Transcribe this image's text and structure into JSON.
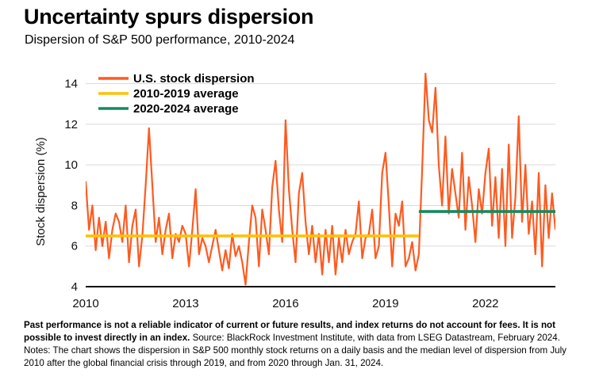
{
  "header": {
    "title": "Uncertainty spurs dispersion",
    "subtitle": "Dispersion of S&P 500 performance, 2010-2024"
  },
  "footer": {
    "disclaimer": "Past performance is not a reliable indicator of current or future results, and index returns do not account for fees. It is not possible to invest directly in an index.",
    "source": " Source: BlackRock Investment Institute, with data from LSEG Datastream, February 2024. Notes: The chart shows the dispersion in S&P 500 monthly stock returns on a daily basis and the median level of dispersion from July 2010 after the global financial crisis through 2019, and from 2020 through Jan. 31, 2024."
  },
  "chart_data": {
    "type": "line",
    "title": "Uncertainty spurs dispersion",
    "subtitle": "Dispersion of S&P 500 performance, 2010-2024",
    "xlabel": "",
    "ylabel": "Stock dispersion (%)",
    "xlim": [
      2010,
      2024.1
    ],
    "ylim": [
      4,
      15
    ],
    "x_ticks": [
      "2010",
      "2013",
      "2016",
      "2019",
      "2022"
    ],
    "y_ticks": [
      "4",
      "6",
      "8",
      "10",
      "12",
      "14"
    ],
    "grid": "horizontal",
    "legend_position": "top-left",
    "series": [
      {
        "name": "U.S. stock dispersion",
        "color": "#ff5a1f",
        "x": [
          2010.0,
          2010.1,
          2010.2,
          2010.3,
          2010.4,
          2010.5,
          2010.6,
          2010.7,
          2010.8,
          2010.9,
          2011.0,
          2011.1,
          2011.2,
          2011.3,
          2011.4,
          2011.5,
          2011.6,
          2011.7,
          2011.8,
          2011.9,
          2012.0,
          2012.1,
          2012.2,
          2012.3,
          2012.4,
          2012.5,
          2012.6,
          2012.7,
          2012.8,
          2012.9,
          2013.0,
          2013.1,
          2013.2,
          2013.3,
          2013.4,
          2013.5,
          2013.6,
          2013.7,
          2013.8,
          2013.9,
          2014.0,
          2014.1,
          2014.2,
          2014.3,
          2014.4,
          2014.5,
          2014.6,
          2014.7,
          2014.8,
          2014.9,
          2015.0,
          2015.1,
          2015.2,
          2015.3,
          2015.4,
          2015.5,
          2015.6,
          2015.7,
          2015.8,
          2015.9,
          2016.0,
          2016.1,
          2016.2,
          2016.3,
          2016.4,
          2016.5,
          2016.6,
          2016.7,
          2016.8,
          2016.9,
          2017.0,
          2017.1,
          2017.2,
          2017.3,
          2017.4,
          2017.5,
          2017.6,
          2017.7,
          2017.8,
          2017.9,
          2018.0,
          2018.1,
          2018.2,
          2018.3,
          2018.4,
          2018.5,
          2018.6,
          2018.7,
          2018.8,
          2018.9,
          2019.0,
          2019.1,
          2019.2,
          2019.3,
          2019.4,
          2019.5,
          2019.6,
          2019.7,
          2019.8,
          2019.9,
          2020.0,
          2020.1,
          2020.2,
          2020.3,
          2020.4,
          2020.5,
          2020.6,
          2020.7,
          2020.8,
          2020.9,
          2021.0,
          2021.1,
          2021.2,
          2021.3,
          2021.4,
          2021.5,
          2021.6,
          2021.7,
          2021.8,
          2021.9,
          2022.0,
          2022.1,
          2022.2,
          2022.3,
          2022.4,
          2022.5,
          2022.6,
          2022.7,
          2022.8,
          2022.9,
          2023.0,
          2023.1,
          2023.2,
          2023.3,
          2023.4,
          2023.5,
          2023.6,
          2023.7,
          2023.8,
          2023.9,
          2024.0,
          2024.1
        ],
        "values": [
          9.2,
          6.8,
          8.0,
          5.8,
          7.4,
          6.0,
          7.2,
          5.4,
          6.8,
          7.6,
          7.2,
          6.2,
          8.0,
          5.2,
          7.0,
          7.8,
          5.0,
          6.5,
          9.0,
          11.8,
          9.0,
          6.2,
          7.4,
          5.6,
          6.8,
          7.6,
          5.4,
          6.6,
          6.2,
          7.0,
          6.6,
          5.0,
          6.8,
          8.8,
          5.6,
          6.4,
          6.0,
          5.2,
          6.0,
          6.8,
          5.8,
          4.8,
          5.8,
          4.9,
          6.6,
          5.5,
          6.0,
          5.2,
          4.1,
          6.2,
          8.0,
          7.4,
          5.0,
          7.8,
          6.8,
          5.6,
          8.9,
          10.2,
          7.8,
          6.2,
          12.2,
          8.8,
          6.8,
          5.2,
          8.6,
          9.6,
          7.2,
          5.6,
          7.0,
          5.2,
          6.6,
          4.6,
          6.8,
          5.2,
          7.0,
          4.6,
          6.4,
          5.2,
          6.8,
          5.6,
          6.2,
          6.6,
          8.2,
          5.4,
          6.4,
          6.6,
          7.8,
          5.4,
          6.0,
          9.6,
          10.6,
          8.0,
          5.0,
          7.6,
          7.0,
          8.2,
          5.0,
          5.4,
          6.2,
          4.8,
          5.6,
          9.8,
          14.5,
          12.2,
          11.6,
          13.8,
          10.0,
          8.0,
          11.4,
          7.6,
          9.8,
          8.6,
          7.4,
          10.6,
          6.8,
          9.4,
          8.0,
          6.2,
          8.8,
          7.6,
          9.6,
          10.8,
          7.0,
          9.4,
          6.4,
          9.8,
          6.0,
          11.0,
          6.4,
          8.4,
          12.4,
          7.2,
          10.0,
          6.6,
          8.2,
          5.6,
          9.6,
          5.0,
          9.0,
          6.4,
          8.6,
          6.8
        ]
      },
      {
        "name": "2010-2019 average",
        "color": "#ffc107",
        "x": [
          2010.0,
          2020.0
        ],
        "values": [
          6.5,
          6.5
        ]
      },
      {
        "name": "2020-2024 average",
        "color": "#158a5e",
        "x": [
          2020.0,
          2024.1
        ],
        "values": [
          7.7,
          7.7
        ]
      }
    ]
  }
}
